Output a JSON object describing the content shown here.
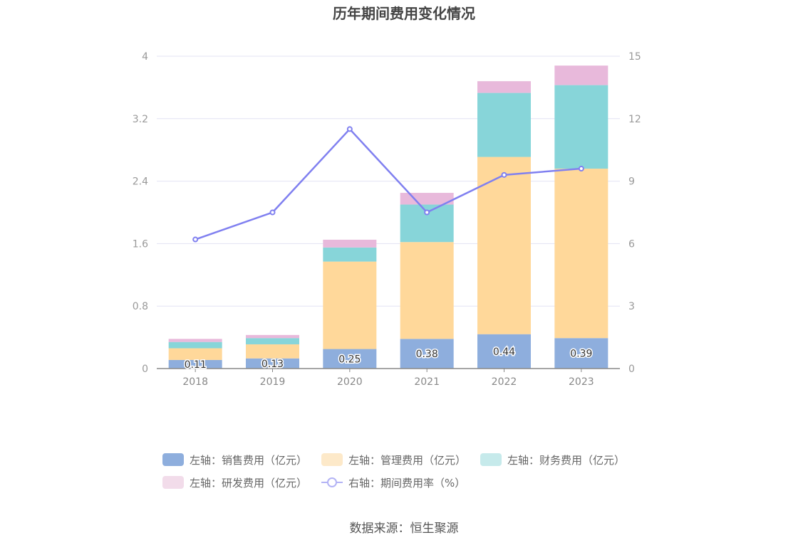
{
  "chart_data": {
    "type": "bar",
    "title": "历年期间费用变化情况",
    "categories": [
      "2018",
      "2019",
      "2020",
      "2021",
      "2022",
      "2023"
    ],
    "stacked": true,
    "left_axis": {
      "ylim": [
        0,
        4
      ],
      "ticks": [
        "0",
        "0.8",
        "1.6",
        "2.4",
        "3.2",
        "4"
      ]
    },
    "right_axis": {
      "ylim": [
        0,
        15
      ],
      "ticks": [
        "0",
        "3",
        "6",
        "9",
        "12",
        "15"
      ]
    },
    "grid": true,
    "series": [
      {
        "name": "左轴：销售费用（亿元）",
        "axis": "left",
        "kind": "bar",
        "values": [
          0.11,
          0.13,
          0.25,
          0.38,
          0.44,
          0.39
        ],
        "labels": [
          "0.11",
          "0.13",
          "0.25",
          "0.38",
          "0.44",
          "0.39"
        ],
        "color": "#8eaedd",
        "legend_color": "#8eaedd"
      },
      {
        "name": "左轴：管理费用（亿元）",
        "axis": "left",
        "kind": "bar",
        "values": [
          0.15,
          0.18,
          1.12,
          1.24,
          2.27,
          2.17
        ],
        "color": "#ffd89a",
        "legend_color": "#fde9c9"
      },
      {
        "name": "左轴：财务费用（亿元）",
        "axis": "left",
        "kind": "bar",
        "values": [
          0.08,
          0.08,
          0.18,
          0.48,
          0.82,
          1.07
        ],
        "color": "#87d5d9",
        "legend_color": "#c6eaeb"
      },
      {
        "name": "左轴：研发费用（亿元）",
        "axis": "left",
        "kind": "bar",
        "values": [
          0.04,
          0.04,
          0.1,
          0.15,
          0.15,
          0.25
        ],
        "color": "#e8b9db",
        "legend_color": "#f2dcea"
      },
      {
        "name": "右轴：期间费用率（%）",
        "axis": "right",
        "kind": "line",
        "values": [
          6.2,
          7.5,
          11.5,
          7.5,
          9.3,
          9.6
        ],
        "color": "#8080f0",
        "legend_color": "#b3b3f5"
      }
    ],
    "legend_position": "bottom"
  },
  "footer": {
    "source": "数据来源：恒生聚源"
  }
}
